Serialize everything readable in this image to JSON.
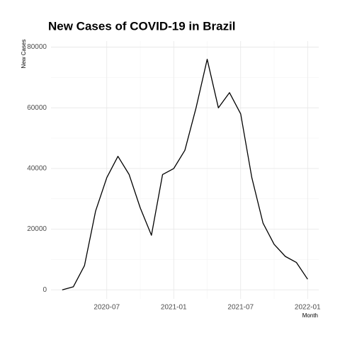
{
  "chart_data": {
    "type": "line",
    "title": "New Cases of COVID-19 in Brazil",
    "x_label": "Month",
    "y_label": "New Cases",
    "x": [
      "2020-03",
      "2020-04",
      "2020-05",
      "2020-06",
      "2020-07",
      "2020-08",
      "2020-09",
      "2020-10",
      "2020-11",
      "2020-12",
      "2021-01",
      "2021-02",
      "2021-03",
      "2021-04",
      "2021-05",
      "2021-06",
      "2021-07",
      "2021-08",
      "2021-09",
      "2021-10",
      "2021-11",
      "2021-12",
      "2022-01"
    ],
    "series": [
      {
        "name": "New Cases",
        "color": "#000000",
        "values": [
          0,
          1000,
          8000,
          26000,
          37000,
          44000,
          38000,
          27000,
          18000,
          38000,
          40000,
          46000,
          60000,
          76000,
          60000,
          65000,
          58000,
          37000,
          22000,
          15000,
          11000,
          9000,
          3500
        ]
      }
    ],
    "xlim": [
      "2020-02",
      "2022-02"
    ],
    "xticks": [
      "2020-07",
      "2021-01",
      "2021-07",
      "2022-01"
    ],
    "ylim": [
      -3000,
      82000
    ],
    "yticks": [
      0,
      20000,
      40000,
      60000,
      80000
    ],
    "grid": true
  }
}
